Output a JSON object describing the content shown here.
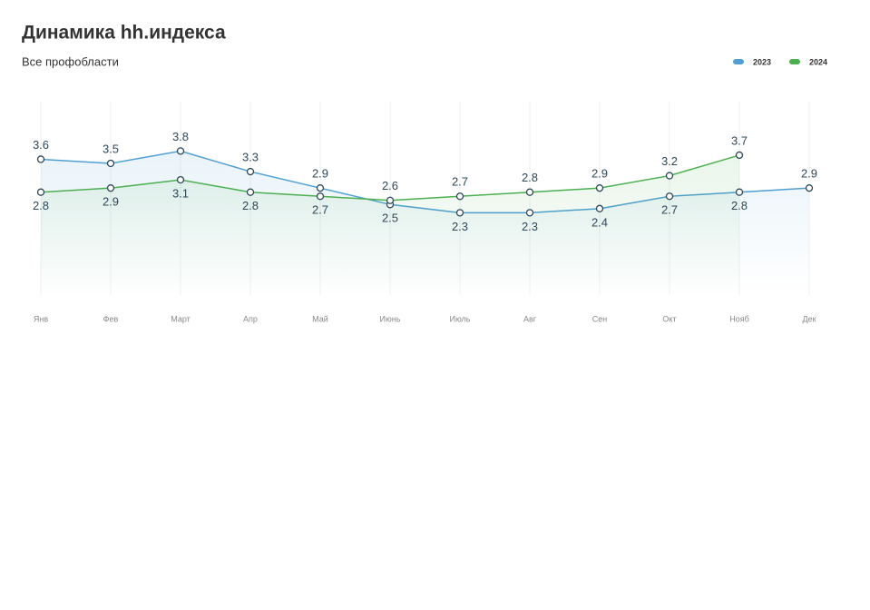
{
  "chart_data": {
    "type": "line",
    "title": "Динамика hh.индекса",
    "subtitle": "Все профобласти",
    "categories": [
      "Янв",
      "Фев",
      "Март",
      "Апр",
      "Май",
      "Июнь",
      "Июль",
      "Авг",
      "Сен",
      "Окт",
      "Нояб",
      "Дек"
    ],
    "series": [
      {
        "name": "2023",
        "color": "#4f9fd2",
        "values": [
          3.6,
          3.5,
          3.8,
          3.3,
          2.9,
          2.5,
          2.3,
          2.3,
          2.4,
          2.7,
          2.8,
          2.9
        ]
      },
      {
        "name": "2024",
        "color": "#4caf50",
        "values": [
          2.8,
          2.9,
          3.1,
          2.8,
          2.7,
          2.6,
          2.7,
          2.8,
          2.9,
          3.2,
          3.7,
          null
        ]
      }
    ],
    "ylim": [
      0.3,
      5.0
    ],
    "grid": true,
    "legend": "top-right"
  }
}
